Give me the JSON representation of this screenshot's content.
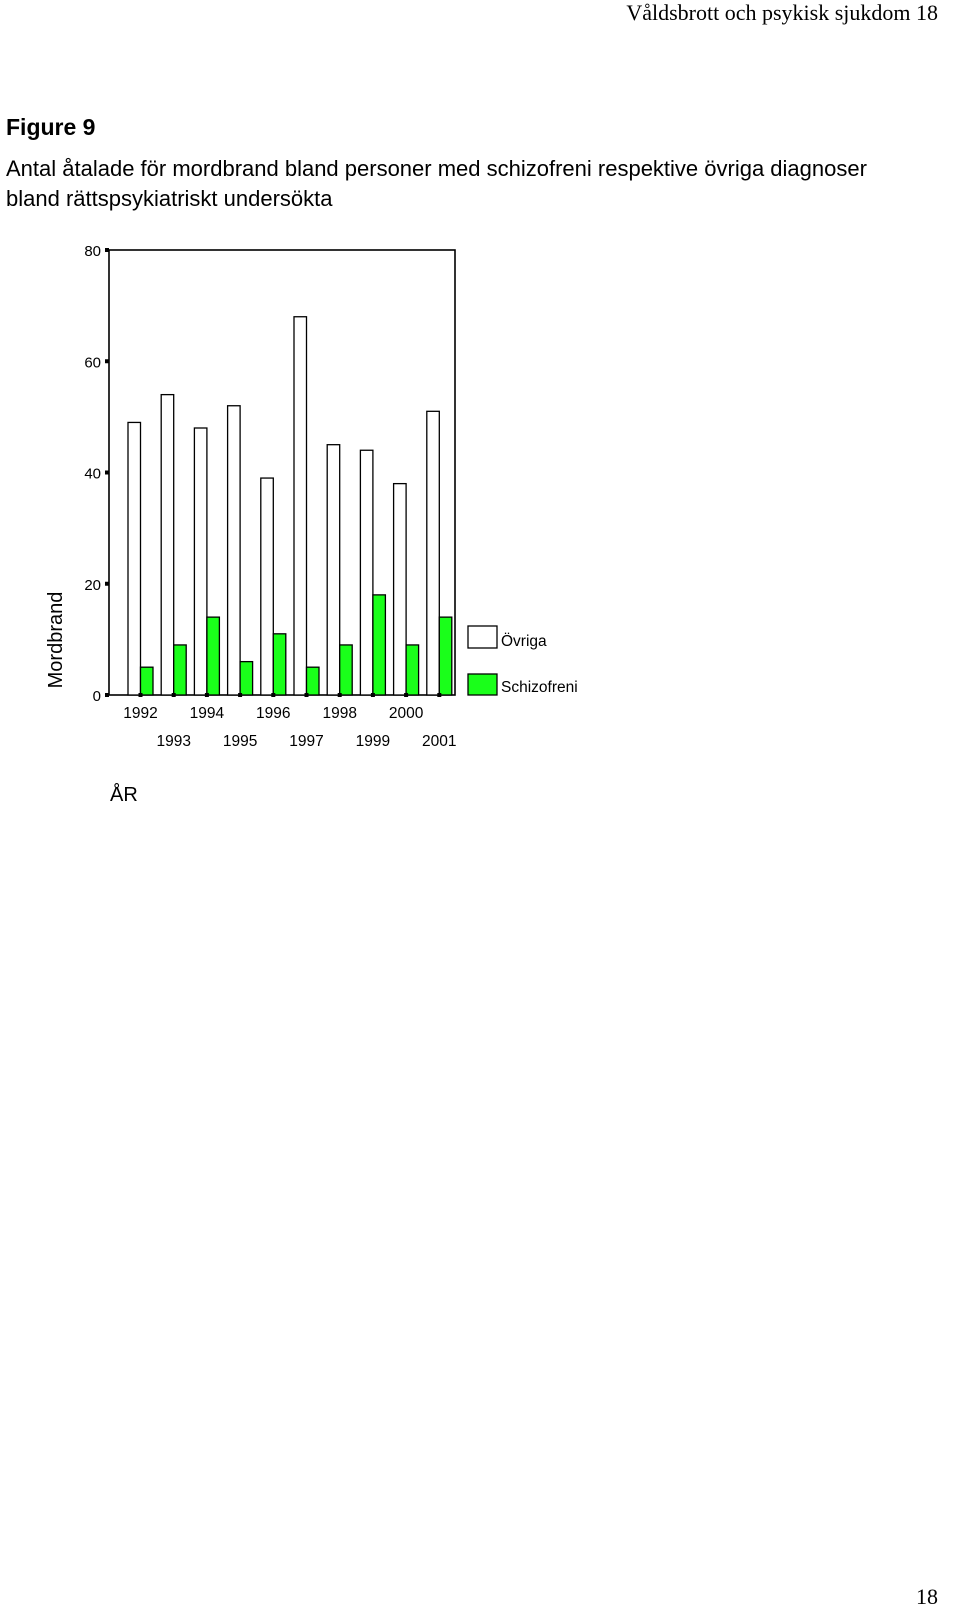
{
  "header": {
    "running_title": "Våldsbrott och psykisk sjukdom 18"
  },
  "figure": {
    "label": "Figure 9",
    "title": "Antal åtalade för mordbrand bland personer med schizofreni respektive övriga diagnoser bland rättspsykiatriskt undersökta"
  },
  "page_number": "18",
  "colors": {
    "ovriga_fill": "#ffffff",
    "schizofreni_fill": "#1aff1a",
    "stroke": "#000000"
  },
  "chart_data": {
    "type": "bar",
    "title": "",
    "xlabel": "ÅR",
    "ylabel": "Mordbrand",
    "ylim": [
      0,
      80
    ],
    "yticks": [
      0,
      20,
      40,
      60,
      80
    ],
    "categories": [
      "1992",
      "1993",
      "1994",
      "1995",
      "1996",
      "1997",
      "1998",
      "1999",
      "2000",
      "2001"
    ],
    "series": [
      {
        "name": "Övriga",
        "values": [
          49,
          54,
          48,
          52,
          39,
          68,
          45,
          44,
          38,
          51
        ]
      },
      {
        "name": "Schizofreni",
        "values": [
          5,
          9,
          14,
          6,
          11,
          5,
          9,
          18,
          9,
          14
        ]
      }
    ],
    "legend_position": "right",
    "grid": false
  }
}
